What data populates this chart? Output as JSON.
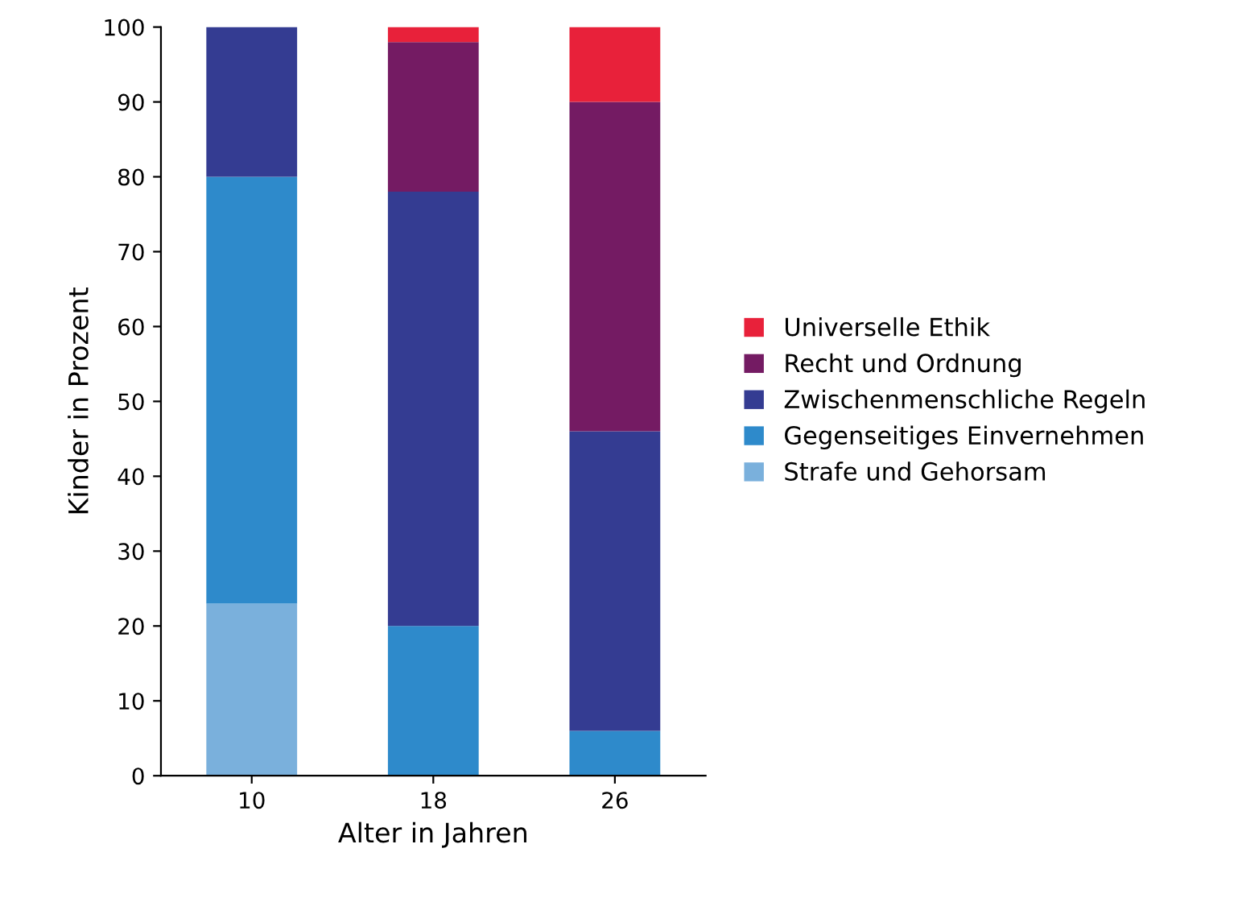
{
  "chart_data": {
    "type": "bar",
    "stacked": true,
    "xlabel": "Alter in Jahren",
    "ylabel": "Kinder in Prozent",
    "categories": [
      "10",
      "18",
      "26"
    ],
    "series": [
      {
        "name": "Strafe und Gehorsam",
        "color": "#7ab0dc",
        "values": [
          23,
          0,
          0
        ]
      },
      {
        "name": "Gegenseitiges Einvernehmen",
        "color": "#2e8acb",
        "values": [
          57,
          20,
          6
        ]
      },
      {
        "name": "Zwischenmenschliche Regeln",
        "color": "#343c92",
        "values": [
          20,
          58,
          40
        ]
      },
      {
        "name": "Recht und Ordnung",
        "color": "#741b63",
        "values": [
          0,
          20,
          44
        ]
      },
      {
        "name": "Universelle Ethik",
        "color": "#e8213a",
        "values": [
          0,
          2,
          10
        ]
      }
    ],
    "ylim": [
      0,
      100
    ],
    "yticks": [
      0,
      10,
      20,
      30,
      40,
      50,
      60,
      70,
      80,
      90,
      100
    ],
    "grid": false,
    "legend": "right"
  }
}
